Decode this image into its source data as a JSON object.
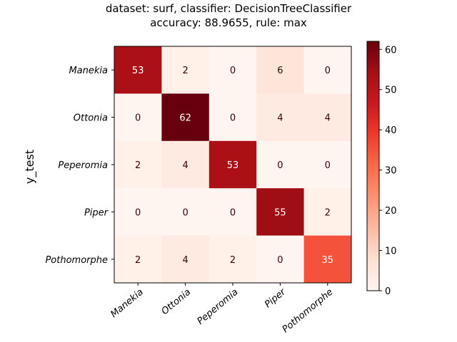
{
  "chart_data": {
    "type": "heatmap",
    "title_line1": "dataset: surf, classifier: DecisionTreeClassifier",
    "title_line2": "accuracy: 88.9655, rule: max",
    "ylabel": "y_test",
    "xlabel": "",
    "row_labels": [
      "Manekia",
      "Ottonia",
      "Peperomia",
      "Piper",
      "Pothomorphe"
    ],
    "col_labels": [
      "Manekia",
      "Ottonia",
      "Peperomia",
      "Piper",
      "Pothomorphe"
    ],
    "values": [
      [
        53,
        2,
        0,
        6,
        0
      ],
      [
        0,
        62,
        0,
        4,
        4
      ],
      [
        2,
        4,
        53,
        0,
        0
      ],
      [
        0,
        0,
        0,
        55,
        2
      ],
      [
        2,
        4,
        2,
        0,
        35
      ]
    ],
    "colormap": "Reds",
    "vmin": 0,
    "vmax": 62,
    "colorbar_ticks": [
      0,
      10,
      20,
      30,
      40,
      50,
      60
    ]
  }
}
